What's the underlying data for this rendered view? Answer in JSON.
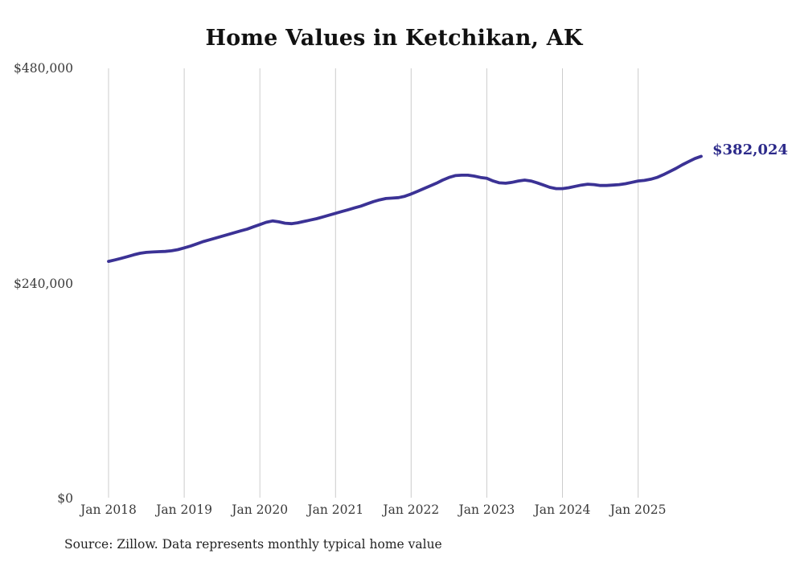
{
  "chart_data": {
    "type": "line",
    "title": "Home Values in Ketchikan, AK",
    "xlabel": "",
    "ylabel": "",
    "ylim": [
      0,
      480000
    ],
    "grid": "vertical-only",
    "legend": "none",
    "end_label": "$382,024",
    "xticks": [
      "Jan 2018",
      "Jan 2019",
      "Jan 2020",
      "Jan 2021",
      "Jan 2022",
      "Jan 2023",
      "Jan 2024",
      "Jan 2025"
    ],
    "yticks": [
      {
        "label": "$480,000",
        "value": 480000
      },
      {
        "label": "$240,000",
        "value": 240000
      },
      {
        "label": "$0",
        "value": 0
      }
    ],
    "colors": {
      "line": "#3b3295",
      "grid": "#cccccc",
      "title": "#111111",
      "axis_text": "#3a3a3a",
      "end_label": "#2c2a8a",
      "background": "#ffffff"
    },
    "series": [
      {
        "name": "Typical home value",
        "x": [
          "2018-01",
          "2018-02",
          "2018-03",
          "2018-04",
          "2018-05",
          "2018-06",
          "2018-07",
          "2018-08",
          "2018-09",
          "2018-10",
          "2018-11",
          "2018-12",
          "2019-01",
          "2019-02",
          "2019-03",
          "2019-04",
          "2019-05",
          "2019-06",
          "2019-07",
          "2019-08",
          "2019-09",
          "2019-10",
          "2019-11",
          "2019-12",
          "2020-01",
          "2020-02",
          "2020-03",
          "2020-04",
          "2020-05",
          "2020-06",
          "2020-07",
          "2020-08",
          "2020-09",
          "2020-10",
          "2020-11",
          "2020-12",
          "2021-01",
          "2021-02",
          "2021-03",
          "2021-04",
          "2021-05",
          "2021-06",
          "2021-07",
          "2021-08",
          "2021-09",
          "2021-10",
          "2021-11",
          "2021-12",
          "2022-01",
          "2022-02",
          "2022-03",
          "2022-04",
          "2022-05",
          "2022-06",
          "2022-07",
          "2022-08",
          "2022-09",
          "2022-10",
          "2022-11",
          "2022-12",
          "2023-01",
          "2023-02",
          "2023-03",
          "2023-04",
          "2023-05",
          "2023-06",
          "2023-07",
          "2023-08",
          "2023-09",
          "2023-10",
          "2023-11",
          "2023-12",
          "2024-01",
          "2024-02",
          "2024-03",
          "2024-04",
          "2024-05",
          "2024-06",
          "2024-07",
          "2024-08",
          "2024-09",
          "2024-10",
          "2024-11",
          "2024-12",
          "2025-01",
          "2025-02",
          "2025-03",
          "2025-04",
          "2025-05",
          "2025-06",
          "2025-07",
          "2025-08",
          "2025-09",
          "2025-10",
          "2025-11"
        ],
        "values": [
          265000,
          266600,
          268400,
          270300,
          272300,
          274000,
          275000,
          275500,
          275800,
          276100,
          276800,
          278100,
          280000,
          282000,
          284500,
          287000,
          289000,
          291000,
          293000,
          295000,
          297000,
          299000,
          301000,
          303500,
          306000,
          308500,
          310000,
          309000,
          307500,
          307000,
          308000,
          309500,
          311000,
          312500,
          314500,
          316500,
          318500,
          320500,
          322500,
          324500,
          326500,
          329000,
          331500,
          333500,
          335000,
          335500,
          336000,
          337500,
          340000,
          343000,
          346000,
          349000,
          352000,
          355500,
          358500,
          360500,
          361000,
          361000,
          360000,
          358500,
          357500,
          354500,
          352500,
          352000,
          353000,
          354500,
          355500,
          354500,
          352500,
          350000,
          347500,
          346000,
          346000,
          347000,
          348500,
          350000,
          351000,
          350500,
          349500,
          349500,
          350000,
          350500,
          351500,
          353000,
          354500,
          355200,
          356500,
          358500,
          361500,
          365000,
          368500,
          372500,
          376000,
          379500,
          382024
        ],
        "last_value": 382024
      }
    ]
  },
  "source": {
    "text": "Source: Zillow. Data represents monthly typical home value"
  }
}
